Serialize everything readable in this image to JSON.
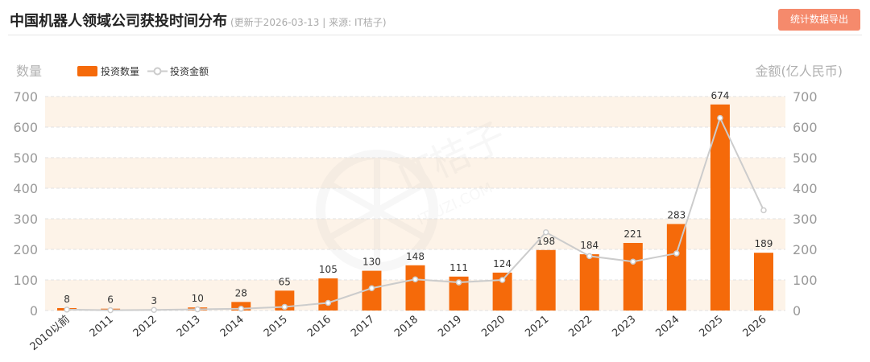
{
  "header": {
    "title": "中国机器人领域公司获投时间分布",
    "subtitle": "(更新于2026-03-13 | 来源: IT桔子)",
    "export_label": "统计数据导出"
  },
  "watermark": {
    "main": "IT桔子",
    "sub": "ITJUZI.COM"
  },
  "colors": {
    "bar": "#f56a0a",
    "line": "#cccccc",
    "band": "#fdf3e8",
    "button": "#f58a6c"
  },
  "chart_data": {
    "type": "bar",
    "categories": [
      "2010以前",
      "2011",
      "2012",
      "2013",
      "2014",
      "2015",
      "2016",
      "2017",
      "2018",
      "2019",
      "2020",
      "2021",
      "2022",
      "2023",
      "2024",
      "2025",
      "2026"
    ],
    "series": [
      {
        "name": "投资数量",
        "type": "bar",
        "axis": "left",
        "values": [
          8,
          6,
          3,
          10,
          28,
          65,
          105,
          130,
          148,
          111,
          124,
          198,
          184,
          221,
          283,
          674,
          189
        ]
      },
      {
        "name": "投资金额",
        "type": "line",
        "axis": "right",
        "values": [
          3,
          1,
          2,
          4,
          6,
          12,
          25,
          73,
          102,
          92,
          100,
          256,
          178,
          160,
          187,
          630,
          328
        ]
      }
    ],
    "ylabel_left": "数量",
    "ylabel_right": "金额(亿人民币)",
    "ylim_left": [
      0,
      700
    ],
    "ylim_right": [
      0,
      700
    ],
    "yticks": [
      0,
      100,
      200,
      300,
      400,
      500,
      600,
      700
    ],
    "legend_position": "top-left",
    "grid": true
  }
}
